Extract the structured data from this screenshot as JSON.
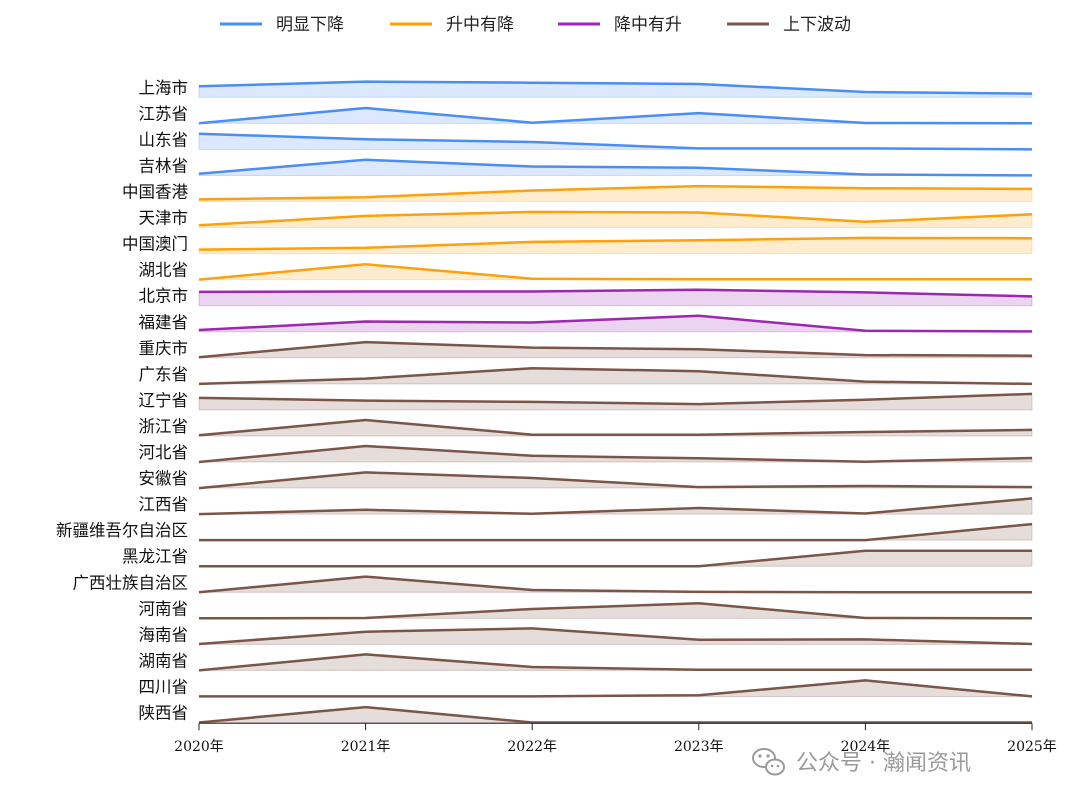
{
  "chart_data": {
    "type": "area",
    "subtype": "ridgeline",
    "x": [
      "2020年",
      "2021年",
      "2022年",
      "2023年",
      "2024年",
      "2025年"
    ],
    "grid": false,
    "legend_position": "top",
    "legend": [
      {
        "key": "down",
        "name": "明显下降",
        "color": "#4a8df6"
      },
      {
        "key": "updown",
        "name": "升中有降",
        "color": "#ffa00a"
      },
      {
        "key": "downup",
        "name": "降中有升",
        "color": "#9c27b0"
      },
      {
        "key": "fluct",
        "name": "上下波动",
        "color": "#7a5548"
      }
    ],
    "series": [
      {
        "name": "上海市",
        "group": "down",
        "values": [
          0.69,
          0.98,
          0.91,
          0.83,
          0.33,
          0.23
        ]
      },
      {
        "name": "江苏省",
        "group": "down",
        "values": [
          0,
          0.96,
          0.04,
          0.64,
          0.02,
          0
        ]
      },
      {
        "name": "山东省",
        "group": "down",
        "values": [
          0.98,
          0.63,
          0.46,
          0.06,
          0.06,
          0
        ]
      },
      {
        "name": "吉林省",
        "group": "down",
        "values": [
          0.11,
          0.98,
          0.56,
          0.48,
          0.06,
          0
        ]
      },
      {
        "name": "中国香港",
        "group": "updown",
        "values": [
          0.13,
          0.27,
          0.69,
          0.96,
          0.83,
          0.79
        ]
      },
      {
        "name": "天津市",
        "group": "updown",
        "values": [
          0.14,
          0.73,
          0.98,
          0.94,
          0.36,
          0.83
        ]
      },
      {
        "name": "中国澳门",
        "group": "updown",
        "values": [
          0.25,
          0.36,
          0.73,
          0.83,
          0.98,
          0.96
        ]
      },
      {
        "name": "湖北省",
        "group": "updown",
        "values": [
          0,
          0.96,
          0.06,
          0.02,
          0.02,
          0.02
        ]
      },
      {
        "name": "北京市",
        "group": "downup",
        "values": [
          0.86,
          0.89,
          0.89,
          1.0,
          0.83,
          0.58
        ]
      },
      {
        "name": "福建省",
        "group": "downup",
        "values": [
          0.11,
          0.64,
          0.58,
          1.0,
          0.06,
          0.02
        ]
      },
      {
        "name": "重庆市",
        "group": "fluct",
        "values": [
          0.04,
          0.98,
          0.64,
          0.54,
          0.17,
          0.13
        ]
      },
      {
        "name": "广东省",
        "group": "fluct",
        "values": [
          0,
          0.33,
          0.98,
          0.79,
          0.14,
          0
        ]
      },
      {
        "name": "辽宁省",
        "group": "fluct",
        "values": [
          0.75,
          0.58,
          0.5,
          0.36,
          0.64,
          1.0
        ]
      },
      {
        "name": "浙江省",
        "group": "fluct",
        "values": [
          0.04,
          1.0,
          0.08,
          0.08,
          0.25,
          0.38
        ]
      },
      {
        "name": "河北省",
        "group": "fluct",
        "values": [
          0,
          1.0,
          0.39,
          0.23,
          0.02,
          0.25
        ]
      },
      {
        "name": "安徽省",
        "group": "fluct",
        "values": [
          0,
          0.98,
          0.63,
          0.06,
          0.13,
          0.06
        ]
      },
      {
        "name": "江西省",
        "group": "fluct",
        "values": [
          0,
          0.27,
          0.02,
          0.38,
          0.04,
          0.98
        ]
      },
      {
        "name": "新疆维吾尔自治区",
        "group": "fluct",
        "values": [
          0,
          0,
          0,
          0,
          0,
          1.0
        ]
      },
      {
        "name": "黑龙江省",
        "group": "fluct",
        "values": [
          0,
          0,
          0,
          0,
          0.96,
          0.96
        ]
      },
      {
        "name": "广西壮族自治区",
        "group": "fluct",
        "values": [
          0,
          0.98,
          0.14,
          0.02,
          0,
          0
        ]
      },
      {
        "name": "河南省",
        "group": "fluct",
        "values": [
          0,
          0.02,
          0.58,
          0.94,
          0.02,
          0
        ]
      },
      {
        "name": "海南省",
        "group": "fluct",
        "values": [
          0.02,
          0.79,
          1.0,
          0.29,
          0.31,
          0.02
        ]
      },
      {
        "name": "湖南省",
        "group": "fluct",
        "values": [
          0,
          1.0,
          0.21,
          0.04,
          0.04,
          0.04
        ]
      },
      {
        "name": "四川省",
        "group": "fluct",
        "values": [
          0,
          0,
          0,
          0.08,
          1.0,
          0
        ]
      },
      {
        "name": "陕西省",
        "group": "fluct",
        "values": [
          0,
          0.96,
          0,
          0,
          0,
          0
        ]
      }
    ]
  },
  "watermark": {
    "text": "公众号 · 瀚闻资讯",
    "icon": "wechat-icon"
  }
}
